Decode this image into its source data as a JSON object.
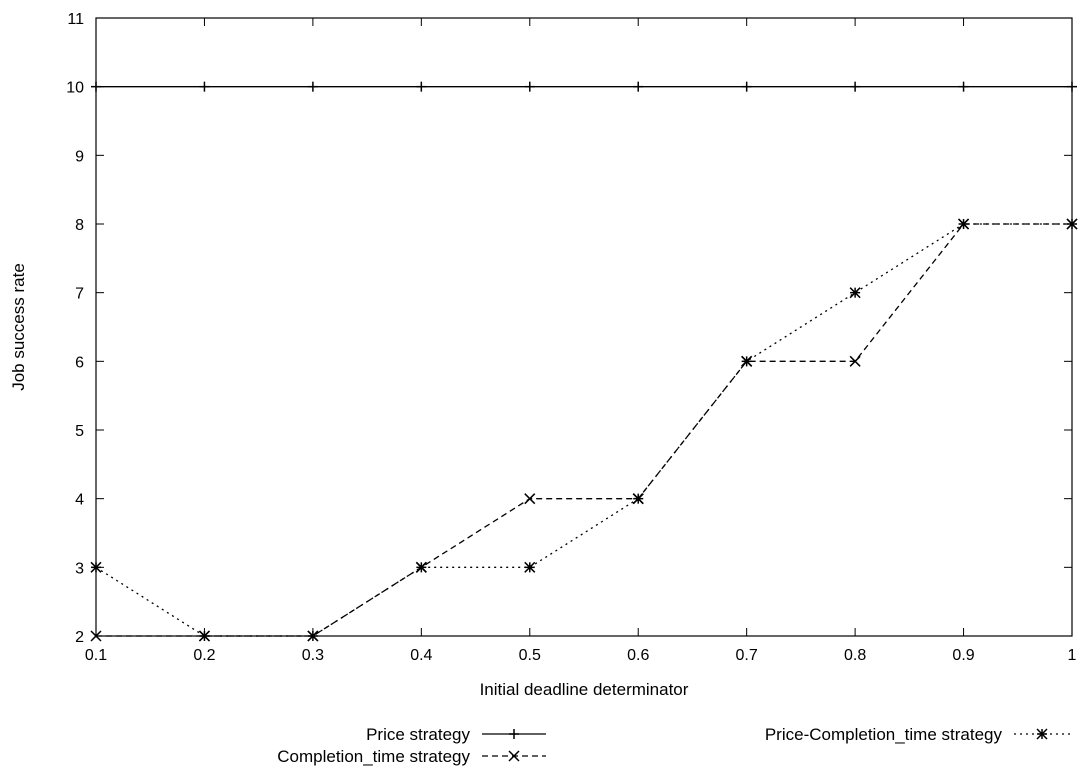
{
  "chart_data": {
    "type": "line",
    "title": "",
    "xlabel": "Initial deadline determinator",
    "ylabel": "Job success rate",
    "xlim": [
      0.1,
      1
    ],
    "ylim": [
      2,
      11
    ],
    "xticks": [
      "0.1",
      "0.2",
      "0.3",
      "0.4",
      "0.5",
      "0.6",
      "0.7",
      "0.8",
      "0.9",
      "1"
    ],
    "yticks": [
      "2",
      "3",
      "4",
      "5",
      "6",
      "7",
      "8",
      "9",
      "10",
      "11"
    ],
    "grid": false,
    "legend_position": "bottom",
    "x": [
      0.1,
      0.2,
      0.3,
      0.4,
      0.5,
      0.6,
      0.7,
      0.8,
      0.9,
      1.0
    ],
    "series": [
      {
        "name": "Price strategy",
        "style": "solid",
        "marker": "plus",
        "values": [
          10,
          10,
          10,
          10,
          10,
          10,
          10,
          10,
          10,
          10
        ]
      },
      {
        "name": "Completion_time strategy",
        "style": "dashed",
        "marker": "cross",
        "values": [
          2,
          2,
          2,
          3,
          4,
          4,
          6,
          6,
          8,
          8
        ]
      },
      {
        "name": "Price-Completion_time strategy",
        "style": "dotted",
        "marker": "star",
        "values": [
          3,
          2,
          2,
          3,
          3,
          4,
          6,
          7,
          8,
          8
        ]
      }
    ]
  }
}
